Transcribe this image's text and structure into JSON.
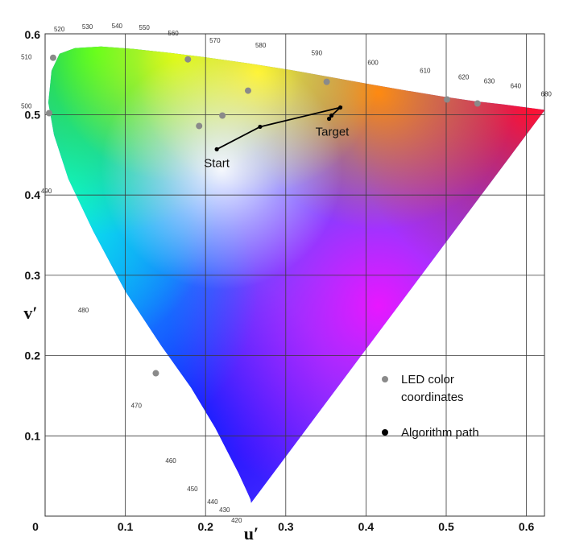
{
  "chart_data": {
    "type": "scatter",
    "title": "",
    "xlabel": "u′",
    "ylabel": "v′",
    "xlim": [
      0,
      0.63
    ],
    "ylim": [
      0,
      0.6
    ],
    "x_ticks": [
      {
        "value": 0,
        "label": "0"
      },
      {
        "value": 0.1,
        "label": "0.1"
      },
      {
        "value": 0.2,
        "label": "0.2"
      },
      {
        "value": 0.3,
        "label": "0.3"
      },
      {
        "value": 0.4,
        "label": "0.4"
      },
      {
        "value": 0.5,
        "label": "0.5"
      },
      {
        "value": 0.6,
        "label": "0.6"
      }
    ],
    "y_ticks": [
      {
        "value": 0.1,
        "label": "0.1"
      },
      {
        "value": 0.2,
        "label": "0.2"
      },
      {
        "value": 0.3,
        "label": "0.3"
      },
      {
        "value": 0.4,
        "label": "0.4"
      },
      {
        "value": 0.5,
        "label": "0.5"
      },
      {
        "value": 0.6,
        "label": "0.6"
      }
    ],
    "grid": true,
    "spectral_locus": [
      [
        0.2568,
        0.0165
      ],
      [
        0.256,
        0.021
      ],
      [
        0.252,
        0.03
      ],
      [
        0.241,
        0.054
      ],
      [
        0.212,
        0.11
      ],
      [
        0.182,
        0.16
      ],
      [
        0.145,
        0.212
      ],
      [
        0.1,
        0.28
      ],
      [
        0.06,
        0.355
      ],
      [
        0.029,
        0.42
      ],
      [
        0.011,
        0.475
      ],
      [
        0.004,
        0.515
      ],
      [
        0.008,
        0.555
      ],
      [
        0.018,
        0.576
      ],
      [
        0.037,
        0.583
      ],
      [
        0.07,
        0.585
      ],
      [
        0.11,
        0.582
      ],
      [
        0.156,
        0.577
      ],
      [
        0.204,
        0.571
      ],
      [
        0.254,
        0.564
      ],
      [
        0.305,
        0.556
      ],
      [
        0.355,
        0.547
      ],
      [
        0.405,
        0.538
      ],
      [
        0.451,
        0.53
      ],
      [
        0.494,
        0.523
      ],
      [
        0.535,
        0.517
      ],
      [
        0.57,
        0.513
      ],
      [
        0.623,
        0.506
      ]
    ],
    "wavelength_labels": [
      {
        "label": "520",
        "u": 0.011,
        "v": 0.604
      },
      {
        "label": "530",
        "u": 0.046,
        "v": 0.607
      },
      {
        "label": "540",
        "u": 0.083,
        "v": 0.608
      },
      {
        "label": "550",
        "u": 0.117,
        "v": 0.606
      },
      {
        "label": "560",
        "u": 0.153,
        "v": 0.599
      },
      {
        "label": "570",
        "u": 0.205,
        "v": 0.59
      },
      {
        "label": "580",
        "u": 0.262,
        "v": 0.584
      },
      {
        "label": "590",
        "u": 0.332,
        "v": 0.574
      },
      {
        "label": "600",
        "u": 0.402,
        "v": 0.562
      },
      {
        "label": "610",
        "u": 0.467,
        "v": 0.552
      },
      {
        "label": "620",
        "u": 0.515,
        "v": 0.544
      },
      {
        "label": "630",
        "u": 0.547,
        "v": 0.539
      },
      {
        "label": "640",
        "u": 0.58,
        "v": 0.533
      },
      {
        "label": "680",
        "u": 0.618,
        "v": 0.523
      },
      {
        "label": "510",
        "u": -0.03,
        "v": 0.569
      },
      {
        "label": "500",
        "u": -0.03,
        "v": 0.508
      },
      {
        "label": "490",
        "u": -0.005,
        "v": 0.402
      },
      {
        "label": "480",
        "u": 0.041,
        "v": 0.254
      },
      {
        "label": "470",
        "u": 0.107,
        "v": 0.135
      },
      {
        "label": "460",
        "u": 0.15,
        "v": 0.066
      },
      {
        "label": "450",
        "u": 0.177,
        "v": 0.031
      },
      {
        "label": "440",
        "u": 0.202,
        "v": 0.015
      },
      {
        "label": "430",
        "u": 0.217,
        "v": 0.005
      },
      {
        "label": "420",
        "u": 0.232,
        "v": -0.008
      }
    ],
    "series": [
      {
        "name": "LED color coordinates",
        "color": "#8a8a8a",
        "points": [
          [
            0.01,
            0.571
          ],
          [
            0.005,
            0.502
          ],
          [
            0.178,
            0.569
          ],
          [
            0.253,
            0.53
          ],
          [
            0.351,
            0.541
          ],
          [
            0.501,
            0.519
          ],
          [
            0.539,
            0.514
          ],
          [
            0.221,
            0.499
          ],
          [
            0.192,
            0.486
          ],
          [
            0.138,
            0.178
          ]
        ]
      },
      {
        "name": "Algorithm path",
        "color": "#000000",
        "points": [
          [
            0.214,
            0.457
          ],
          [
            0.268,
            0.485
          ],
          [
            0.368,
            0.509
          ],
          [
            0.357,
            0.499
          ],
          [
            0.354,
            0.495
          ]
        ]
      }
    ],
    "annotations": [
      {
        "label": "Start",
        "u": 0.198,
        "v": 0.435
      },
      {
        "label": "Target",
        "u": 0.337,
        "v": 0.474
      }
    ],
    "legend": {
      "position": "bottom-right",
      "entries": [
        {
          "lines": [
            "LED color",
            "coordinates"
          ],
          "color": "#8a8a8a"
        },
        {
          "lines": [
            "Algorithm path"
          ],
          "color": "#000000"
        }
      ]
    }
  }
}
